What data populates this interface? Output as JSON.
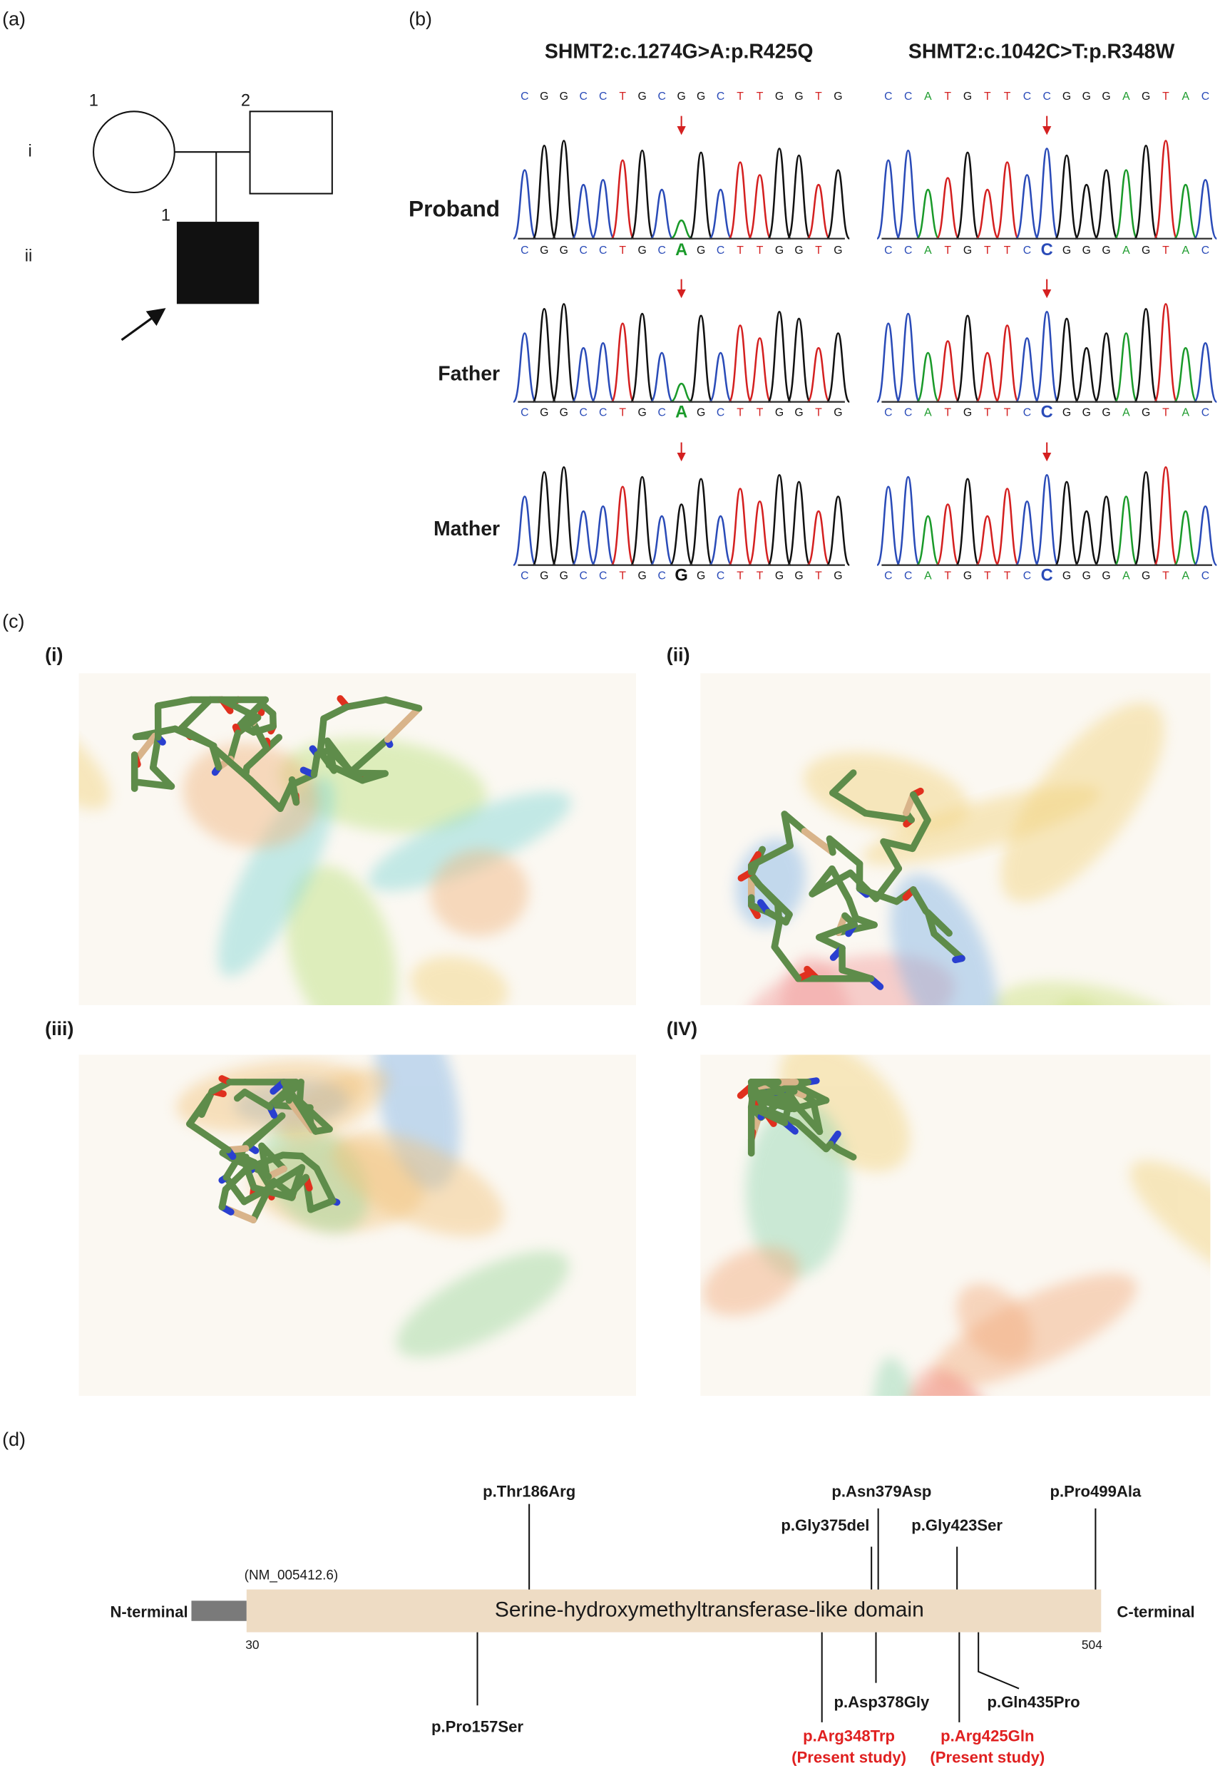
{
  "panel_a": {
    "label": "(a)",
    "generations": [
      "i",
      "ii"
    ],
    "individuals": [
      "1",
      "2",
      "1"
    ]
  },
  "panel_b": {
    "label": "(b)",
    "rows": [
      "Proband",
      "Father",
      "Mather"
    ],
    "variants": [
      {
        "title": "SHMT2:c.1274G>A:p.R425Q",
        "reference": "CGGCCTGCGGCTTGGTG",
        "traces": [
          "CGGCCTGCAGCTTGGTG",
          "CGGCCTGCAGCTTGGTG",
          "CGGCCTGCGGCTTGGTG"
        ]
      },
      {
        "title": "SHMT2:c.1042C>T:p.R348W",
        "reference": "CCATGTTCCGGGAGTAC",
        "traces": [
          "CCATGTTCCGGGAGTAC",
          "CCATGTTCCGGGAGTAC",
          "CCATGTTCCGGGAGTAC"
        ]
      }
    ]
  },
  "panel_c": {
    "label": "(c)",
    "views": [
      "(i)",
      "(ii)",
      "(iii)",
      "(IV)"
    ]
  },
  "panel_d": {
    "label": "(d)",
    "transcript": "(NM_005412.6)",
    "n_terminal": "N-terminal",
    "c_terminal": "C-terminal",
    "domain": "Serine-hydroxymethyltransferase-like domain",
    "start": 30,
    "end": 504,
    "above": [
      "p.Thr186Arg",
      "p.Asn379Asp",
      "p.Gly375del",
      "p.Gly423Ser",
      "p.Pro499Ala"
    ],
    "below": [
      {
        "name": "p.Pro157Ser"
      },
      {
        "name": "p.Arg348Trp",
        "note": "(Present study)"
      },
      {
        "name": "p.Asp378Gly"
      },
      {
        "name": "p.Arg425Gln",
        "note": "(Present study)"
      },
      {
        "name": "p.Gln435Pro"
      }
    ]
  }
}
